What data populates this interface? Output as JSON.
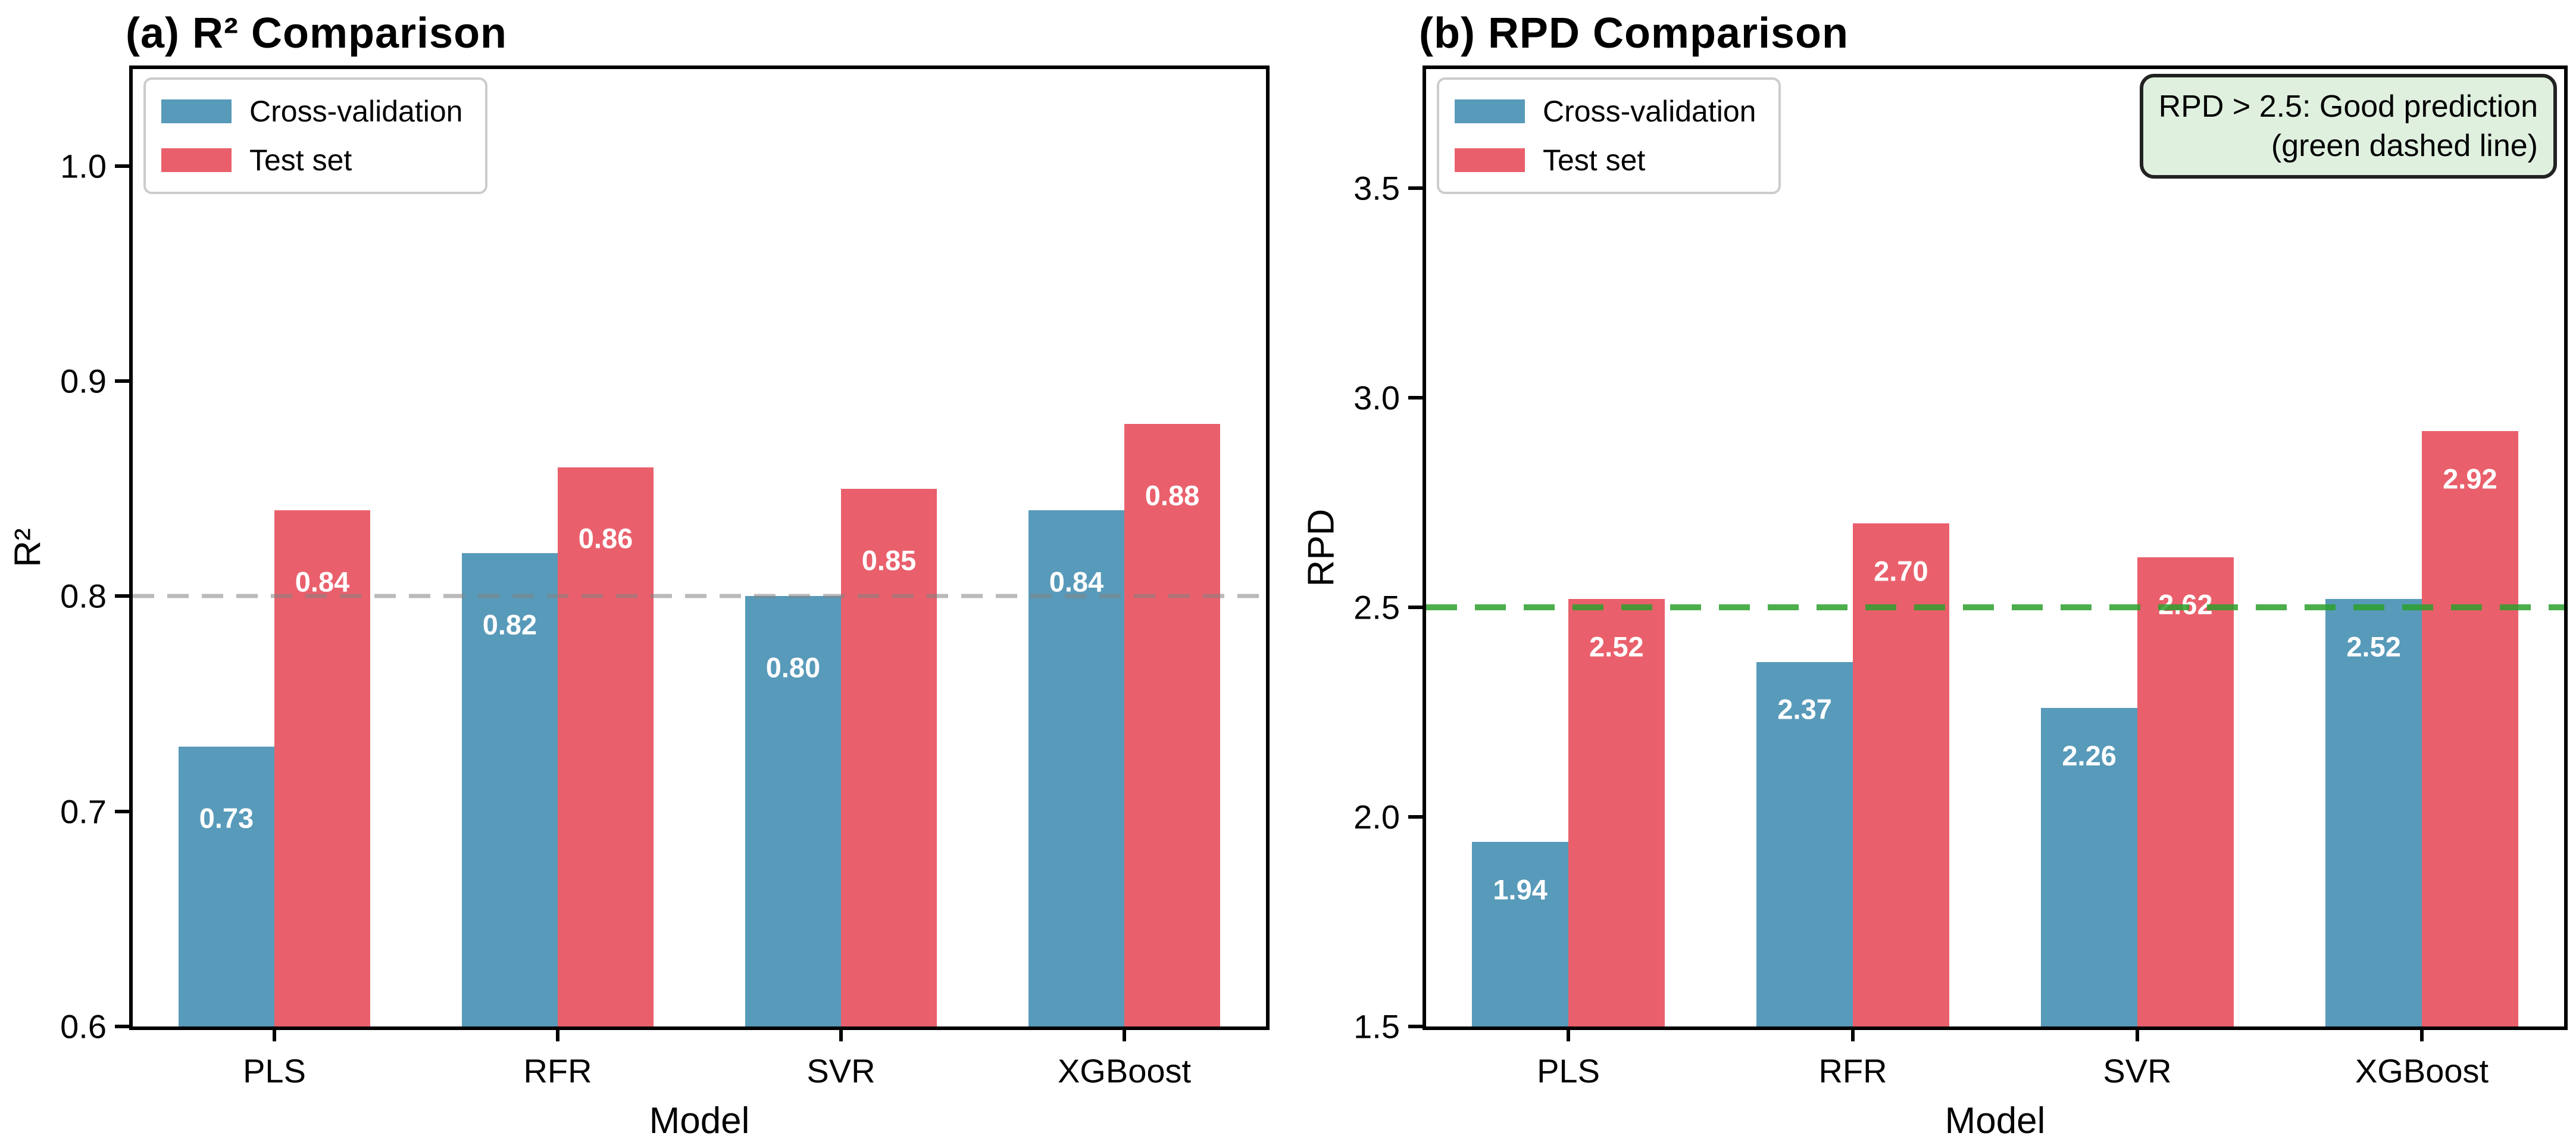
{
  "figure": {
    "background": "#ffffff"
  },
  "legend": {
    "items": [
      {
        "label": "Cross-validation",
        "color": "#589AB9"
      },
      {
        "label": "Test set",
        "color": "#E9606C"
      }
    ]
  },
  "chart_data": [
    {
      "type": "bar",
      "title": "(a) R² Comparison",
      "xlabel": "Model",
      "ylabel": "R²",
      "categories": [
        "PLS",
        "RFR",
        "SVR",
        "XGBoost"
      ],
      "series": [
        {
          "name": "Cross-validation",
          "color": "#589AB9",
          "values": [
            0.73,
            0.82,
            0.8,
            0.84
          ],
          "labels": [
            "0.73",
            "0.82",
            "0.80",
            "0.84"
          ]
        },
        {
          "name": "Test set",
          "color": "#E9606C",
          "values": [
            0.84,
            0.86,
            0.85,
            0.88
          ],
          "labels": [
            "0.84",
            "0.86",
            "0.85",
            "0.88"
          ]
        }
      ],
      "ylim": [
        0.6,
        1.045
      ],
      "yticks": [
        0.6,
        0.7,
        0.8,
        0.9,
        1.0
      ],
      "ytick_labels": [
        "0.6",
        "0.7",
        "0.8",
        "0.9",
        "1.0"
      ],
      "ref_line": {
        "value": 0.8,
        "color": "rgba(130,130,130,0.55)",
        "style": "dashed"
      },
      "grid": false,
      "legend_position": "upper left"
    },
    {
      "type": "bar",
      "title": "(b) RPD Comparison",
      "xlabel": "Model",
      "ylabel": "RPD",
      "categories": [
        "PLS",
        "RFR",
        "SVR",
        "XGBoost"
      ],
      "series": [
        {
          "name": "Cross-validation",
          "color": "#589AB9",
          "values": [
            1.94,
            2.37,
            2.26,
            2.52
          ],
          "labels": [
            "1.94",
            "2.37",
            "2.26",
            "2.52"
          ]
        },
        {
          "name": "Test set",
          "color": "#E9606C",
          "values": [
            2.52,
            2.7,
            2.62,
            2.92
          ],
          "labels": [
            "2.52",
            "2.70",
            "2.62",
            "2.92"
          ]
        }
      ],
      "ylim": [
        1.5,
        3.784
      ],
      "yticks": [
        1.5,
        2.0,
        2.5,
        3.0,
        3.5
      ],
      "ytick_labels": [
        "1.5",
        "2.0",
        "2.5",
        "3.0",
        "3.5"
      ],
      "ref_line": {
        "value": 2.5,
        "color": "rgba(44,160,44,0.85)",
        "style": "dashed"
      },
      "annotation": {
        "line1": "RPD > 2.5: Good prediction",
        "line2": "(green dashed line)",
        "fill": "#DFF0DF",
        "border": "#222222"
      },
      "grid": false,
      "legend_position": "upper left"
    }
  ]
}
